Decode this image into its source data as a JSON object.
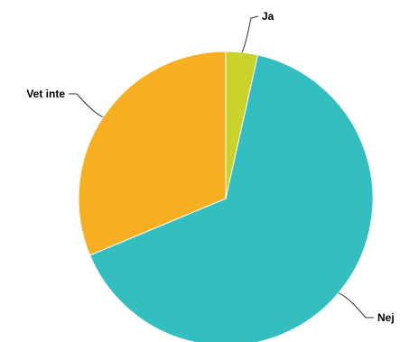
{
  "chart_data": {
    "type": "pie",
    "title": "",
    "labels": [
      "Ja",
      "Nej",
      "Vet inte"
    ],
    "values": [
      3.5,
      65.2,
      31.3
    ],
    "unit": "%",
    "start_angle_deg": 0,
    "direction": "clockwise",
    "colors": [
      "#cad32c",
      "#35bec0",
      "#f6ae22"
    ],
    "legend": "none",
    "label_style": "outside-with-leader-lines"
  }
}
